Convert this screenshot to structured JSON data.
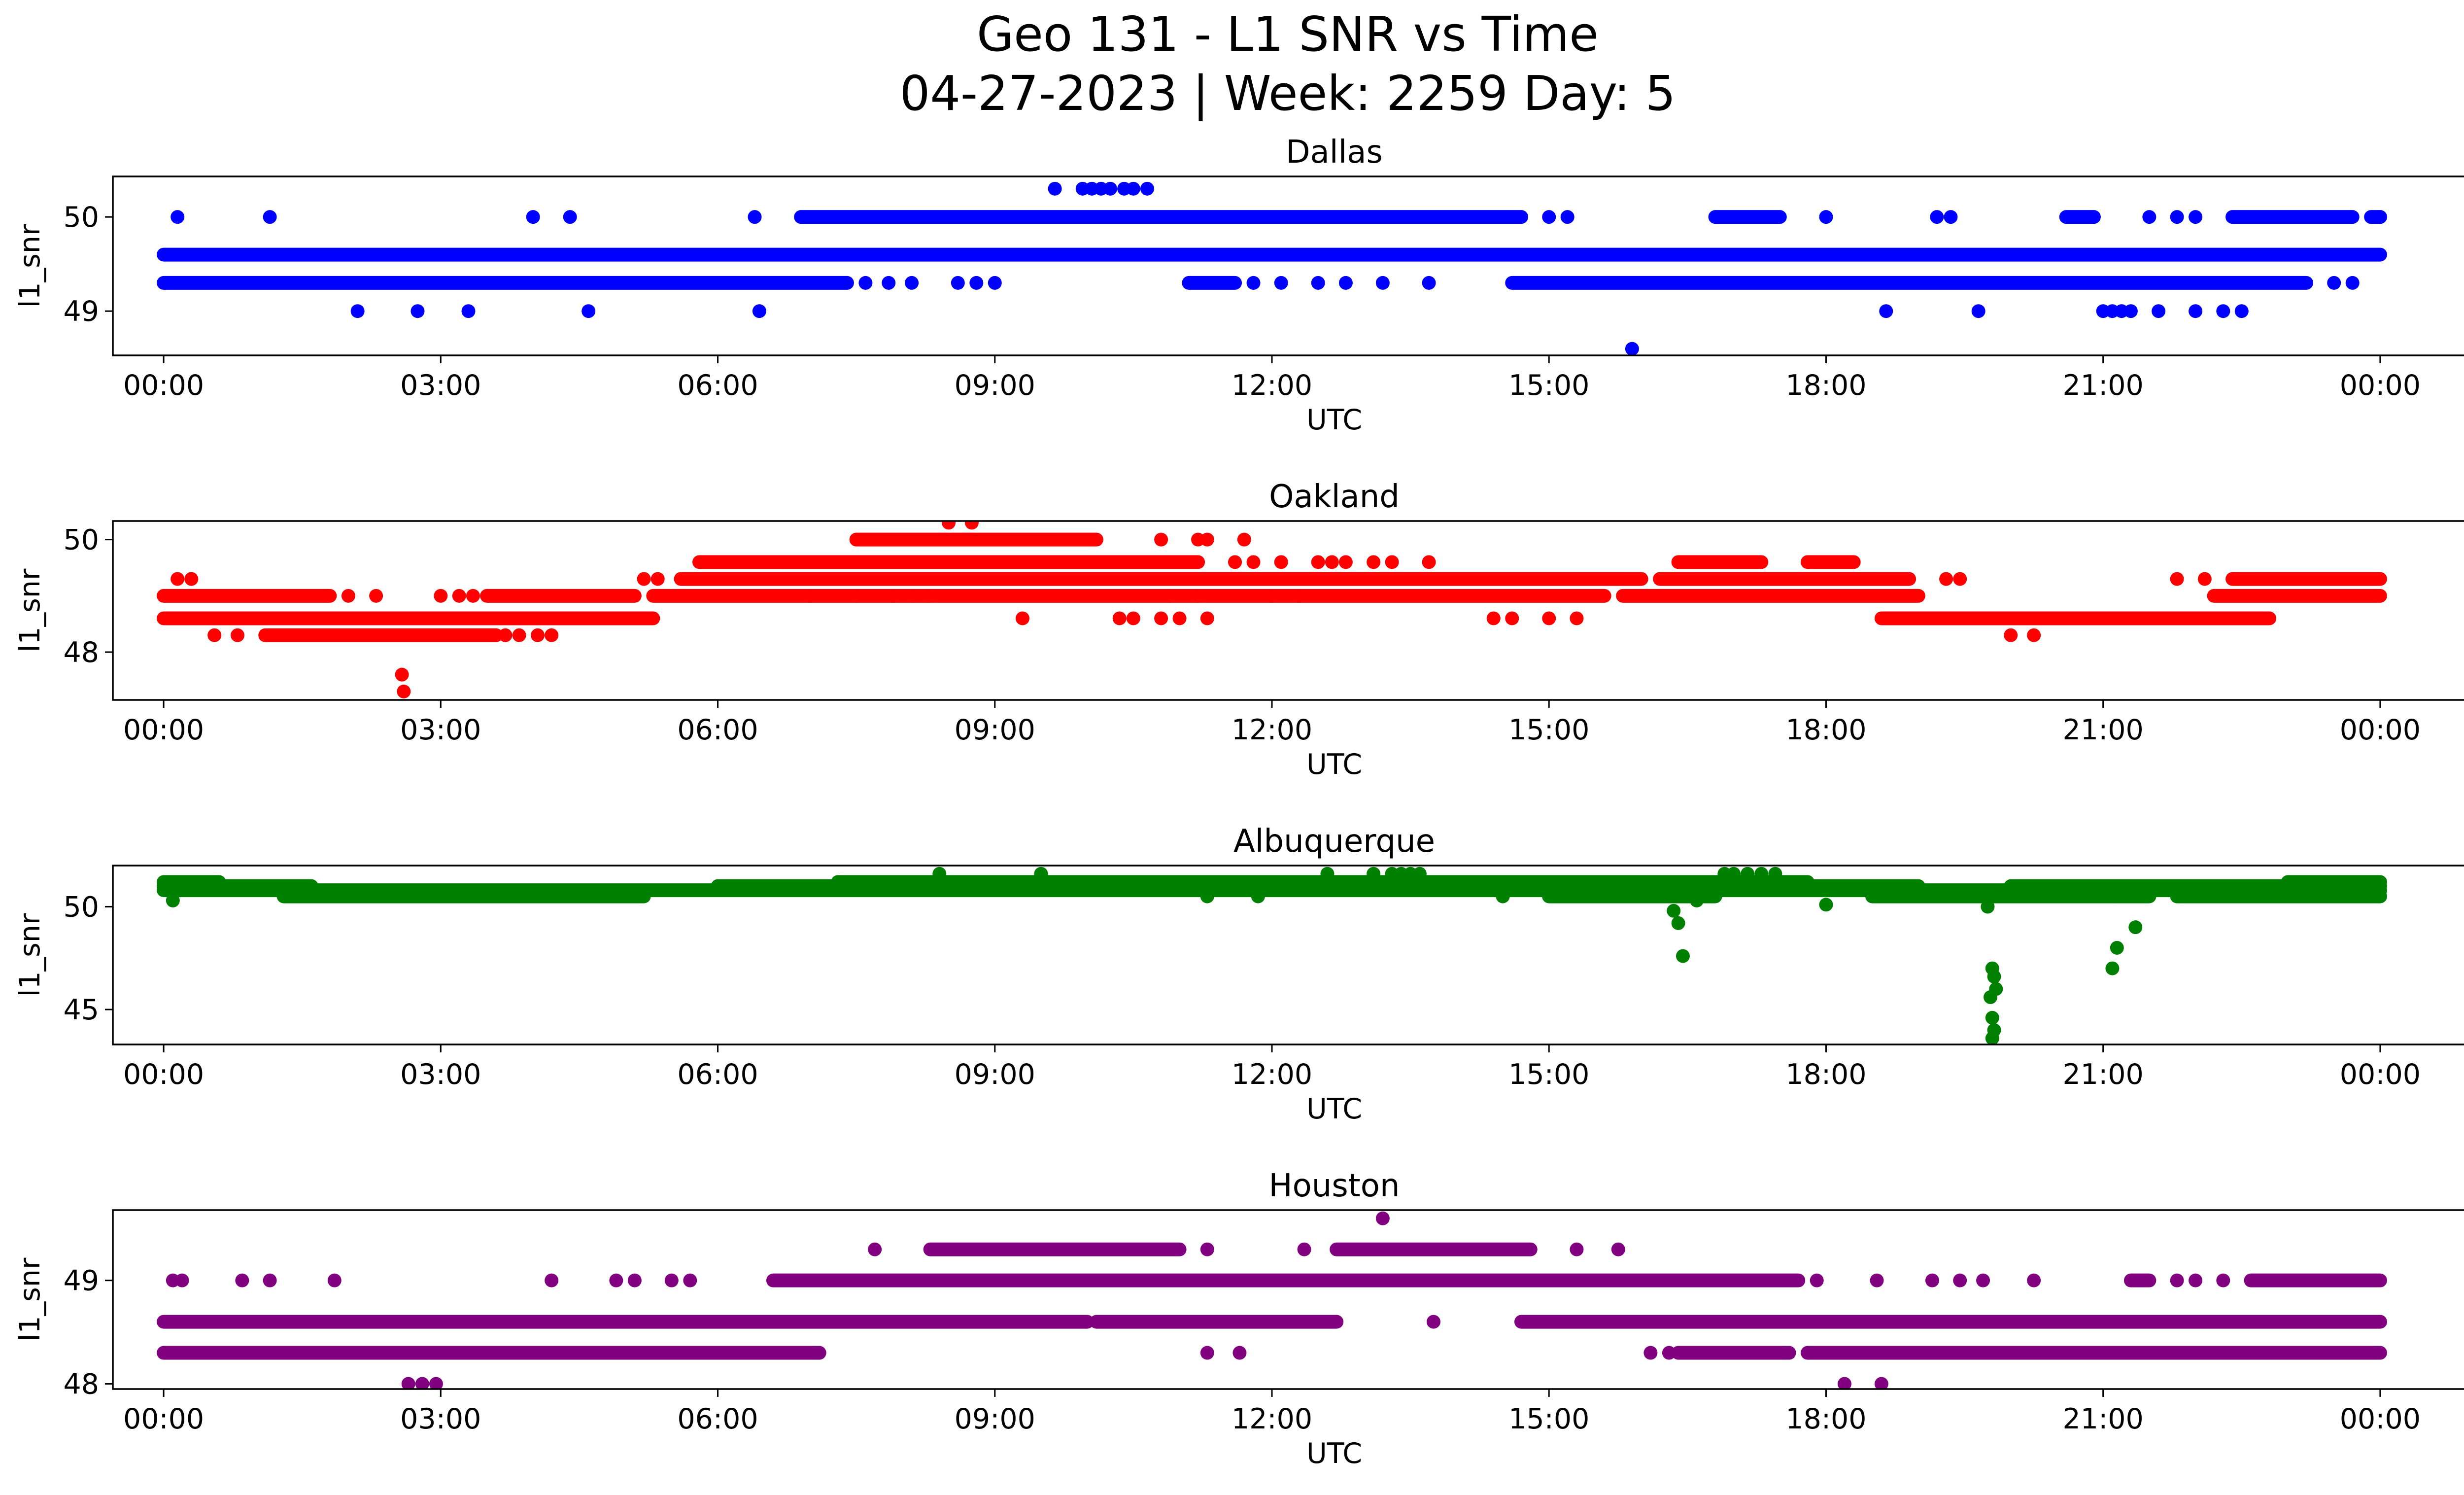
{
  "figure": {
    "title_line1": "Geo 131 - L1 SNR vs Time",
    "title_line2": "04-27-2023 | Week: 2259 Day: 5"
  },
  "chart_data": [
    {
      "type": "scatter",
      "title": "Dallas",
      "xlabel": "UTC",
      "ylabel": "l1_snr",
      "color": "#0000ff",
      "xlim_hours": [
        -0.55,
        25.9
      ],
      "ylim": [
        48.53,
        50.43
      ],
      "x_tick_labels": [
        "00:00",
        "03:00",
        "06:00",
        "09:00",
        "12:00",
        "15:00",
        "18:00",
        "21:00",
        "00:00"
      ],
      "x_tick_hours": [
        0,
        3,
        6,
        9,
        12,
        15,
        18,
        21,
        24
      ],
      "y_ticks": [
        49,
        50
      ],
      "bands": [
        {
          "y": 49.6,
          "ranges": [
            [
              0,
              24
            ]
          ]
        },
        {
          "y": 49.3,
          "ranges": [
            [
              0,
              7.4
            ],
            [
              11.1,
              11.6
            ],
            [
              14.6,
              23.2
            ]
          ]
        },
        {
          "y": 50.0,
          "ranges": [
            [
              6.9,
              14.7
            ],
            [
              16.8,
              17.5
            ],
            [
              20.6,
              20.9
            ],
            [
              22.4,
              23.7
            ],
            [
              23.9,
              24
            ]
          ]
        }
      ],
      "points": [
        [
          0.15,
          50.0
        ],
        [
          1.15,
          50.0
        ],
        [
          4.0,
          50.0
        ],
        [
          4.4,
          50.0
        ],
        [
          6.4,
          50.0
        ],
        [
          15.0,
          50.0
        ],
        [
          15.2,
          50.0
        ],
        [
          18.0,
          50.0
        ],
        [
          19.2,
          50.0
        ],
        [
          19.35,
          50.0
        ],
        [
          21.5,
          50.0
        ],
        [
          21.8,
          50.0
        ],
        [
          22.0,
          50.0
        ],
        [
          24.0,
          50.0
        ],
        [
          7.6,
          49.3
        ],
        [
          7.85,
          49.3
        ],
        [
          8.1,
          49.3
        ],
        [
          8.6,
          49.3
        ],
        [
          8.8,
          49.3
        ],
        [
          9.0,
          49.3
        ],
        [
          11.8,
          49.3
        ],
        [
          12.1,
          49.3
        ],
        [
          12.5,
          49.3
        ],
        [
          12.8,
          49.3
        ],
        [
          13.2,
          49.3
        ],
        [
          13.7,
          49.3
        ],
        [
          23.5,
          49.3
        ],
        [
          23.7,
          49.3
        ],
        [
          2.1,
          49.0
        ],
        [
          2.75,
          49.0
        ],
        [
          3.3,
          49.0
        ],
        [
          4.6,
          49.0
        ],
        [
          6.45,
          49.0
        ],
        [
          18.65,
          49.0
        ],
        [
          19.65,
          49.0
        ],
        [
          21.0,
          49.0
        ],
        [
          21.1,
          49.0
        ],
        [
          21.2,
          49.0
        ],
        [
          21.3,
          49.0
        ],
        [
          21.6,
          49.0
        ],
        [
          22.0,
          49.0
        ],
        [
          22.3,
          49.0
        ],
        [
          22.5,
          49.0
        ],
        [
          9.65,
          50.3
        ],
        [
          9.95,
          50.3
        ],
        [
          10.05,
          50.3
        ],
        [
          10.15,
          50.3
        ],
        [
          10.25,
          50.3
        ],
        [
          10.4,
          50.3
        ],
        [
          10.5,
          50.3
        ],
        [
          10.65,
          50.3
        ],
        [
          15.9,
          48.6
        ]
      ]
    },
    {
      "type": "scatter",
      "title": "Oakland",
      "xlabel": "UTC",
      "ylabel": "l1_snr",
      "color": "#ff0000",
      "xlim_hours": [
        -0.55,
        25.9
      ],
      "ylim": [
        47.15,
        50.33
      ],
      "x_tick_labels": [
        "00:00",
        "03:00",
        "06:00",
        "09:00",
        "12:00",
        "15:00",
        "18:00",
        "21:00",
        "00:00"
      ],
      "x_tick_hours": [
        0,
        3,
        6,
        9,
        12,
        15,
        18,
        21,
        24
      ],
      "y_ticks": [
        48,
        50
      ],
      "bands": [
        {
          "y": 49.0,
          "ranges": [
            [
              0,
              1.8
            ],
            [
              3.5,
              5.1
            ],
            [
              5.3,
              15.6
            ],
            [
              15.8,
              19.0
            ],
            [
              22.2,
              24
            ]
          ]
        },
        {
          "y": 49.3,
          "ranges": [
            [
              5.6,
              16.0
            ],
            [
              16.2,
              18.9
            ],
            [
              22.4,
              24
            ]
          ]
        },
        {
          "y": 49.6,
          "ranges": [
            [
              5.8,
              6.7
            ],
            [
              6.7,
              11.2
            ],
            [
              16.4,
              17.3
            ],
            [
              17.8,
              18.3
            ]
          ]
        },
        {
          "y": 50.0,
          "ranges": [
            [
              7.5,
              10.1
            ]
          ]
        },
        {
          "y": 48.6,
          "ranges": [
            [
              0,
              5.3
            ],
            [
              18.6,
              22.8
            ]
          ]
        },
        {
          "y": 48.3,
          "ranges": [
            [
              1.1,
              3.6
            ]
          ]
        }
      ],
      "points": [
        [
          0.15,
          49.3
        ],
        [
          0.3,
          49.3
        ],
        [
          5.2,
          49.3
        ],
        [
          5.35,
          49.3
        ],
        [
          19.3,
          49.3
        ],
        [
          19.45,
          49.3
        ],
        [
          21.8,
          49.3
        ],
        [
          22.1,
          49.3
        ],
        [
          2.0,
          49.0
        ],
        [
          2.3,
          49.0
        ],
        [
          3.0,
          49.0
        ],
        [
          3.2,
          49.0
        ],
        [
          3.35,
          49.0
        ],
        [
          7.0,
          49.0
        ],
        [
          7.5,
          49.0
        ],
        [
          7.9,
          49.0
        ],
        [
          8.1,
          49.0
        ],
        [
          8.3,
          49.0
        ],
        [
          10.9,
          49.0
        ],
        [
          11.2,
          49.0
        ],
        [
          12.0,
          49.0
        ],
        [
          12.3,
          49.0
        ],
        [
          10.8,
          50.0
        ],
        [
          11.2,
          50.0
        ],
        [
          11.3,
          50.0
        ],
        [
          11.7,
          50.0
        ],
        [
          11.6,
          49.6
        ],
        [
          11.8,
          49.6
        ],
        [
          12.1,
          49.6
        ],
        [
          12.5,
          49.6
        ],
        [
          12.65,
          49.6
        ],
        [
          12.8,
          49.6
        ],
        [
          13.1,
          49.6
        ],
        [
          13.3,
          49.6
        ],
        [
          13.7,
          49.6
        ],
        [
          0.55,
          48.3
        ],
        [
          0.8,
          48.3
        ],
        [
          3.7,
          48.3
        ],
        [
          3.85,
          48.3
        ],
        [
          4.05,
          48.3
        ],
        [
          4.2,
          48.3
        ],
        [
          20.0,
          48.3
        ],
        [
          20.25,
          48.3
        ],
        [
          9.3,
          48.6
        ],
        [
          10.35,
          48.6
        ],
        [
          10.5,
          48.6
        ],
        [
          10.8,
          48.6
        ],
        [
          11.0,
          48.6
        ],
        [
          11.3,
          48.6
        ],
        [
          14.4,
          48.6
        ],
        [
          14.6,
          48.6
        ],
        [
          15.0,
          48.6
        ],
        [
          15.3,
          48.6
        ],
        [
          8.5,
          50.3
        ],
        [
          8.75,
          50.3
        ],
        [
          2.58,
          47.6
        ],
        [
          2.6,
          47.3
        ]
      ]
    },
    {
      "type": "scatter",
      "title": "Albuquerque",
      "xlabel": "UTC",
      "ylabel": "l1_snr",
      "color": "#008000",
      "xlim_hours": [
        -0.55,
        25.9
      ],
      "ylim": [
        43.3,
        52.0
      ],
      "x_tick_labels": [
        "00:00",
        "03:00",
        "06:00",
        "09:00",
        "12:00",
        "15:00",
        "18:00",
        "21:00",
        "00:00"
      ],
      "x_tick_hours": [
        0,
        3,
        6,
        9,
        12,
        15,
        18,
        21,
        24
      ],
      "y_ticks": [
        45,
        50
      ],
      "bands": [
        {
          "y": 51.2,
          "ranges": [
            [
              0,
              0.6
            ],
            [
              7.3,
              17.8
            ],
            [
              23.0,
              24
            ]
          ]
        },
        {
          "y": 51.0,
          "ranges": [
            [
              0,
              1.6
            ],
            [
              6.0,
              19.0
            ],
            [
              20.0,
              24
            ]
          ]
        },
        {
          "y": 50.8,
          "ranges": [
            [
              0,
              24
            ]
          ]
        },
        {
          "y": 50.5,
          "ranges": [
            [
              1.3,
              5.2
            ],
            [
              15.0,
              16.8
            ],
            [
              18.5,
              21.5
            ],
            [
              21.8,
              24
            ]
          ]
        }
      ],
      "points": [
        [
          8.4,
          51.6
        ],
        [
          9.5,
          51.6
        ],
        [
          12.6,
          51.6
        ],
        [
          13.1,
          51.6
        ],
        [
          13.3,
          51.6
        ],
        [
          13.4,
          51.6
        ],
        [
          13.5,
          51.6
        ],
        [
          13.6,
          51.6
        ],
        [
          16.9,
          51.6
        ],
        [
          17.0,
          51.6
        ],
        [
          17.15,
          51.6
        ],
        [
          17.3,
          51.6
        ],
        [
          17.45,
          51.6
        ],
        [
          0.1,
          50.3
        ],
        [
          11.3,
          50.5
        ],
        [
          11.85,
          50.5
        ],
        [
          14.5,
          50.5
        ],
        [
          16.6,
          50.3
        ],
        [
          18.0,
          50.1
        ],
        [
          19.75,
          50.0
        ],
        [
          21.15,
          50.5
        ],
        [
          16.35,
          49.8
        ],
        [
          16.4,
          49.2
        ],
        [
          16.45,
          47.6
        ],
        [
          21.35,
          49.0
        ],
        [
          21.15,
          48.0
        ],
        [
          21.1,
          47.0
        ],
        [
          19.8,
          47.0
        ],
        [
          19.82,
          46.6
        ],
        [
          19.84,
          46.0
        ],
        [
          19.78,
          45.6
        ],
        [
          19.8,
          44.6
        ],
        [
          19.82,
          44.0
        ],
        [
          19.8,
          43.6
        ]
      ]
    },
    {
      "type": "scatter",
      "title": "Houston",
      "xlabel": "UTC",
      "ylabel": "l1_snr",
      "color": "#800080",
      "xlim_hours": [
        -0.55,
        25.9
      ],
      "ylim": [
        47.95,
        49.68
      ],
      "x_tick_labels": [
        "00:00",
        "03:00",
        "06:00",
        "09:00",
        "12:00",
        "15:00",
        "18:00",
        "21:00",
        "00:00"
      ],
      "x_tick_hours": [
        0,
        3,
        6,
        9,
        12,
        15,
        18,
        21,
        24
      ],
      "y_ticks": [
        48,
        49
      ],
      "bands": [
        {
          "y": 48.6,
          "ranges": [
            [
              0,
              10.0
            ],
            [
              10.1,
              12.7
            ],
            [
              14.7,
              24
            ]
          ]
        },
        {
          "y": 48.3,
          "ranges": [
            [
              0,
              7.1
            ],
            [
              16.4,
              17.6
            ],
            [
              17.8,
              24
            ]
          ]
        },
        {
          "y": 49.0,
          "ranges": [
            [
              6.6,
              17.7
            ],
            [
              21.3,
              21.5
            ],
            [
              22.6,
              24
            ]
          ]
        },
        {
          "y": 49.3,
          "ranges": [
            [
              8.3,
              11.0
            ],
            [
              12.7,
              14.8
            ]
          ]
        }
      ],
      "points": [
        [
          0.1,
          49.0
        ],
        [
          0.2,
          49.0
        ],
        [
          0.85,
          49.0
        ],
        [
          1.15,
          49.0
        ],
        [
          1.85,
          49.0
        ],
        [
          4.2,
          49.0
        ],
        [
          4.9,
          49.0
        ],
        [
          5.1,
          49.0
        ],
        [
          5.5,
          49.0
        ],
        [
          5.7,
          49.0
        ],
        [
          17.9,
          49.0
        ],
        [
          18.55,
          49.0
        ],
        [
          19.15,
          49.0
        ],
        [
          19.45,
          49.0
        ],
        [
          19.7,
          49.0
        ],
        [
          20.25,
          49.0
        ],
        [
          21.8,
          49.0
        ],
        [
          22.0,
          49.0
        ],
        [
          22.3,
          49.0
        ],
        [
          7.7,
          49.3
        ],
        [
          11.3,
          49.3
        ],
        [
          12.35,
          49.3
        ],
        [
          15.3,
          49.3
        ],
        [
          15.75,
          49.3
        ],
        [
          11.3,
          48.3
        ],
        [
          11.65,
          48.3
        ],
        [
          16.1,
          48.3
        ],
        [
          16.3,
          48.3
        ],
        [
          13.75,
          48.6
        ],
        [
          13.2,
          49.6
        ],
        [
          2.65,
          48.0
        ],
        [
          2.8,
          48.0
        ],
        [
          2.95,
          48.0
        ],
        [
          18.2,
          48.0
        ],
        [
          18.6,
          48.0
        ]
      ]
    }
  ]
}
